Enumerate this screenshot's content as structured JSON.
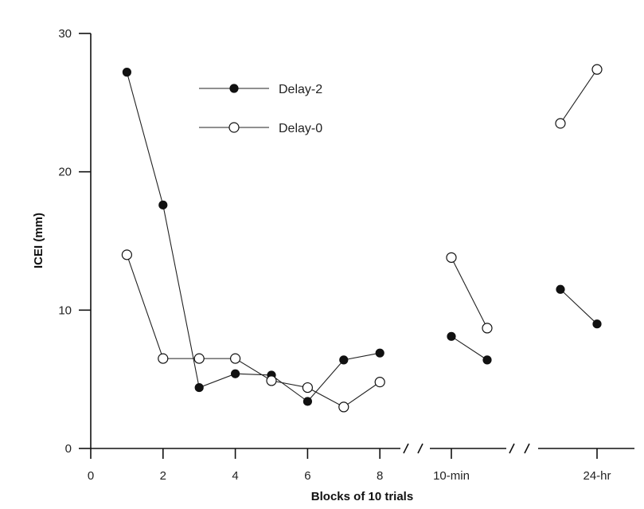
{
  "chart_data": {
    "type": "line",
    "xlabel": "Blocks of 10 trials",
    "ylabel": "ICEI (mm)",
    "ylim": [
      0,
      30
    ],
    "y_ticks": [
      "0",
      "10",
      "20",
      "30"
    ],
    "x_ticks": [
      "0",
      "2",
      "4",
      "6",
      "8",
      "10-min",
      "24-hr"
    ],
    "axis_breaks": [
      "8 / 10-min",
      "10-min / 24-hr"
    ],
    "legend": {
      "placement": "top-center"
    },
    "series": [
      {
        "name": "Delay-2",
        "marker": "filled-circle",
        "segments": [
          {
            "group": "blocks",
            "points": [
              [
                1,
                27.2
              ],
              [
                2,
                17.6
              ],
              [
                3,
                4.4
              ],
              [
                4,
                5.4
              ],
              [
                5,
                5.3
              ],
              [
                6,
                3.4
              ],
              [
                7,
                6.4
              ],
              [
                8,
                6.9
              ]
            ]
          },
          {
            "group": "10-min",
            "points": [
              [
                1,
                8.1
              ],
              [
                2,
                6.4
              ]
            ]
          },
          {
            "group": "24-hr",
            "points": [
              [
                1,
                11.5
              ],
              [
                2,
                9.0
              ]
            ]
          }
        ]
      },
      {
        "name": "Delay-0",
        "marker": "open-circle",
        "segments": [
          {
            "group": "blocks",
            "points": [
              [
                1,
                14.0
              ],
              [
                2,
                6.5
              ],
              [
                3,
                6.5
              ],
              [
                4,
                6.5
              ],
              [
                5,
                4.9
              ],
              [
                6,
                4.4
              ],
              [
                7,
                3.0
              ],
              [
                8,
                4.8
              ]
            ]
          },
          {
            "group": "10-min",
            "points": [
              [
                1,
                13.8
              ],
              [
                2,
                8.7
              ]
            ]
          },
          {
            "group": "24-hr",
            "points": [
              [
                1,
                23.5
              ],
              [
                2,
                27.4
              ]
            ]
          }
        ]
      }
    ]
  }
}
